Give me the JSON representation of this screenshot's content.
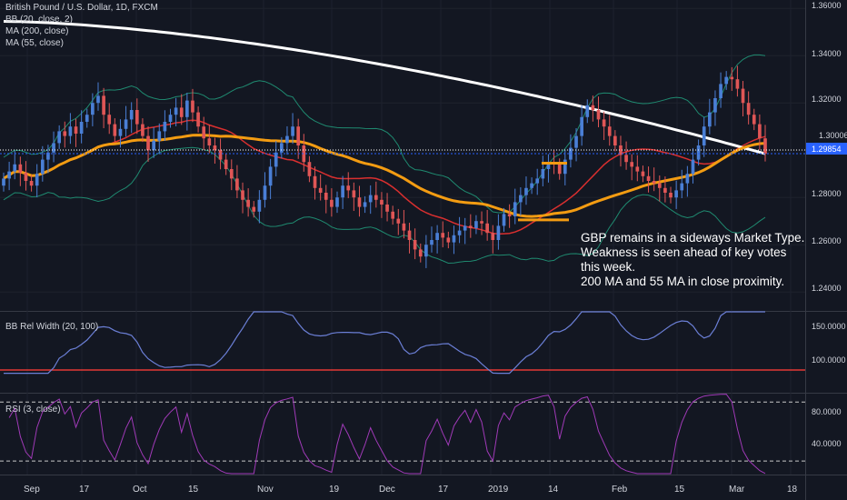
{
  "main_pane": {
    "title": "British Pound / U.S. Dollar, 1D, FXCM",
    "indicators": [
      "BB (20, close, 2)",
      "MA (200, close)",
      "MA (55, close)"
    ],
    "price_ticks": [
      "1.36000",
      "1.34000",
      "1.32000",
      "1.28000",
      "1.26000",
      "1.24000"
    ],
    "last_price_label": "1.29854",
    "hline_label": "1.30006",
    "annotation": "GBP remains in a sideways Market Type.\nWeakness is seen ahead of  key votes\nthis week.\n200 MA and 55 MA in close proximity."
  },
  "bbw_pane": {
    "title": "BB Rel Width (20, 100)",
    "ticks": [
      "150.0000",
      "100.0000"
    ]
  },
  "rsi_pane": {
    "title": "RSI (3, close)",
    "ticks": [
      "80.0000",
      "40.0000"
    ]
  },
  "x_axis": {
    "labels": [
      "Sep",
      "17",
      "Oct",
      "15",
      "Nov",
      "19",
      "Dec",
      "17",
      "2019",
      "14",
      "Feb",
      "15",
      "Mar",
      "18"
    ]
  },
  "colors": {
    "background": "#131722",
    "up": "#4a7fd6",
    "down": "#e05656",
    "ma200": "#ffffff",
    "ma55": "#f39c12",
    "bb_mid": "#d92f2f",
    "bb_band": "#1f8a70",
    "bbw": "#6b7fd6",
    "rsi": "#a03ab8",
    "last_price": "#2962ff"
  },
  "chart_data": [
    {
      "type": "candlestick",
      "title": "British Pound / U.S. Dollar, 1D, FXCM",
      "ylim": [
        1.232,
        1.362
      ],
      "x_start": "Sep",
      "closes": [
        1.288,
        1.291,
        1.294,
        1.2905,
        1.287,
        1.285,
        1.29,
        1.296,
        1.299,
        1.303,
        1.308,
        1.306,
        1.31,
        1.307,
        1.312,
        1.315,
        1.32,
        1.323,
        1.315,
        1.311,
        1.306,
        1.309,
        1.313,
        1.317,
        1.311,
        1.306,
        1.3,
        1.304,
        1.308,
        1.312,
        1.315,
        1.318,
        1.314,
        1.321,
        1.316,
        1.31,
        1.305,
        1.302,
        1.3,
        1.296,
        1.292,
        1.288,
        1.283,
        1.279,
        1.276,
        1.274,
        1.279,
        1.285,
        1.293,
        1.299,
        1.303,
        1.306,
        1.31,
        1.302,
        1.295,
        1.289,
        1.284,
        1.282,
        1.279,
        1.276,
        1.28,
        1.285,
        1.283,
        1.28,
        1.276,
        1.278,
        1.281,
        1.279,
        1.277,
        1.274,
        1.271,
        1.269,
        1.266,
        1.262,
        1.258,
        1.255,
        1.26,
        1.262,
        1.265,
        1.263,
        1.261,
        1.264,
        1.266,
        1.268,
        1.267,
        1.27,
        1.269,
        1.265,
        1.262,
        1.268,
        1.273,
        1.272,
        1.278,
        1.281,
        1.284,
        1.286,
        1.288,
        1.292,
        1.295,
        1.294,
        1.29,
        1.296,
        1.301,
        1.306,
        1.314,
        1.319,
        1.317,
        1.313,
        1.31,
        1.306,
        1.302,
        1.298,
        1.295,
        1.293,
        1.291,
        1.289,
        1.287,
        1.286,
        1.284,
        1.282,
        1.28,
        1.283,
        1.286,
        1.29,
        1.296,
        1.302,
        1.31,
        1.316,
        1.322,
        1.328,
        1.331,
        1.33,
        1.326,
        1.32,
        1.315,
        1.311,
        1.305,
        1.2985
      ],
      "bb_rel_width": {
        "ylim": [
          60,
          170
        ],
        "reference_line": 90
      },
      "rsi": {
        "ylim": [
          5,
          100
        ],
        "levels": [
          90,
          20
        ]
      }
    }
  ]
}
